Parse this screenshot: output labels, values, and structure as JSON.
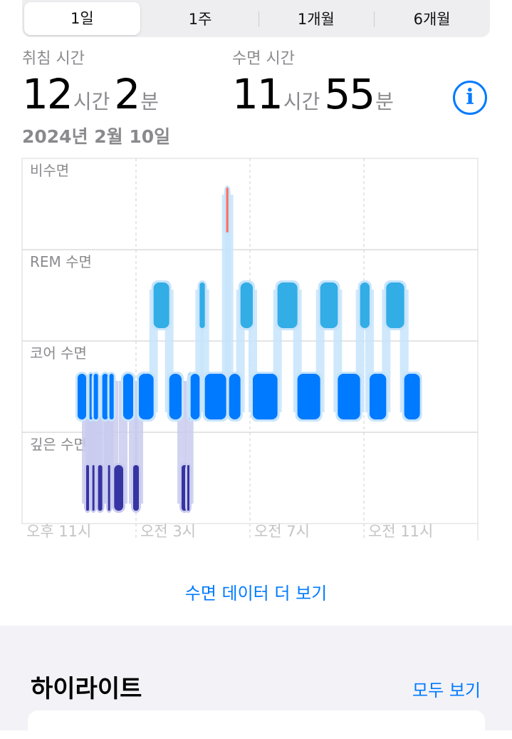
{
  "tabs": [
    {
      "label": "1일",
      "selected": true
    },
    {
      "label": "1주"
    },
    {
      "label": "1개월"
    },
    {
      "label": "6개월"
    }
  ],
  "summary": {
    "in_bed_label": "취침 시간",
    "in_bed_hours": "12",
    "in_bed_minutes": "2",
    "asleep_label": "수면 시간",
    "asleep_hours": "11",
    "asleep_minutes": "55",
    "hour_unit": "시간",
    "minute_unit": "분",
    "date": "2024년 2월 10일",
    "info_icon": "info-circle-icon"
  },
  "chart_data": {
    "type": "timeline",
    "stages": [
      {
        "key": "awake",
        "label": "비수면",
        "color": "#ff6b5a"
      },
      {
        "key": "rem",
        "label": "REM 수면",
        "color": "#32ade6"
      },
      {
        "key": "core",
        "label": "코어 수면",
        "color": "#007aff"
      },
      {
        "key": "deep",
        "label": "깊은 수면",
        "color": "#3634a3"
      }
    ],
    "x_ticks": [
      "오후 11시",
      "오전 3시",
      "오전 7시",
      "오전 11시"
    ],
    "x_range": [
      "23:00",
      "15:00"
    ],
    "segments": [
      {
        "stage": "core",
        "start": "00:57",
        "end": "01:15"
      },
      {
        "stage": "deep",
        "start": "01:15",
        "end": "01:21"
      },
      {
        "stage": "core",
        "start": "01:22",
        "end": "01:28"
      },
      {
        "stage": "deep",
        "start": "01:28",
        "end": "01:31"
      },
      {
        "stage": "core",
        "start": "01:31",
        "end": "01:40"
      },
      {
        "stage": "deep",
        "start": "01:40",
        "end": "01:49"
      },
      {
        "stage": "core",
        "start": "01:49",
        "end": "02:01"
      },
      {
        "stage": "deep",
        "start": "02:01",
        "end": "02:03"
      },
      {
        "stage": "core",
        "start": "02:04",
        "end": "02:13"
      },
      {
        "stage": "deep",
        "start": "02:14",
        "end": "02:33"
      },
      {
        "stage": "core",
        "start": "02:33",
        "end": "02:54"
      },
      {
        "stage": "deep",
        "start": "02:54",
        "end": "03:06"
      },
      {
        "stage": "core",
        "start": "03:06",
        "end": "03:37"
      },
      {
        "stage": "rem",
        "start": "03:37",
        "end": "04:10"
      },
      {
        "stage": "core",
        "start": "04:10",
        "end": "04:36"
      },
      {
        "stage": "deep",
        "start": "04:36",
        "end": "04:48"
      },
      {
        "stage": "deep",
        "start": "04:48",
        "end": "04:52"
      },
      {
        "stage": "core",
        "start": "04:52",
        "end": "04:55"
      },
      {
        "stage": "core",
        "start": "04:55",
        "end": "05:14"
      },
      {
        "stage": "rem",
        "start": "05:14",
        "end": "05:25"
      },
      {
        "stage": "core",
        "start": "05:25",
        "end": "06:10"
      },
      {
        "stage": "awake",
        "start": "06:10",
        "end": "06:13"
      },
      {
        "stage": "core",
        "start": "06:16",
        "end": "06:40"
      },
      {
        "stage": "rem",
        "start": "06:40",
        "end": "07:06"
      },
      {
        "stage": "core",
        "start": "07:06",
        "end": "07:58"
      },
      {
        "stage": "rem",
        "start": "07:58",
        "end": "08:40"
      },
      {
        "stage": "core",
        "start": "08:40",
        "end": "09:28"
      },
      {
        "stage": "rem",
        "start": "09:28",
        "end": "10:05"
      },
      {
        "stage": "core",
        "start": "10:05",
        "end": "10:52"
      },
      {
        "stage": "rem",
        "start": "10:52",
        "end": "11:12"
      },
      {
        "stage": "core",
        "start": "11:12",
        "end": "11:47"
      },
      {
        "stage": "rem",
        "start": "11:47",
        "end": "12:25"
      },
      {
        "stage": "core",
        "start": "12:25",
        "end": "12:58"
      }
    ]
  },
  "more_link": "수면 데이터 더 보기",
  "highlights": {
    "title": "하이라이트",
    "show_all": "모두 보기"
  }
}
